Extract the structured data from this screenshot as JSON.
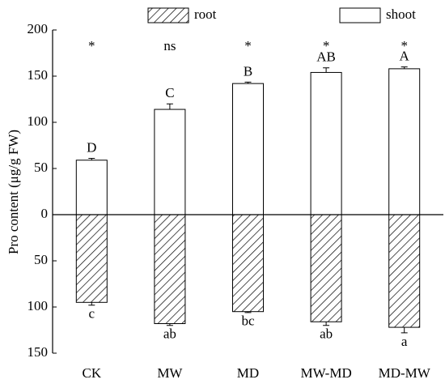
{
  "chart_data": {
    "type": "bar",
    "y_label": "Pro content (μg/g FW)",
    "categories": [
      "CK",
      "MW",
      "MD",
      "MW-MD",
      "MD-MW"
    ],
    "series": [
      {
        "name": "root",
        "color": "#000000",
        "hatch": true,
        "values": [
          -95,
          -118,
          -105,
          -116,
          -122
        ],
        "errors": [
          3,
          2,
          1,
          4,
          6
        ],
        "letters": [
          "c",
          "ab",
          "bc",
          "ab",
          "a"
        ]
      },
      {
        "name": "shoot",
        "color": "#000000",
        "hatch": false,
        "values": [
          59,
          114,
          142,
          154,
          158
        ],
        "errors": [
          2,
          6,
          1.5,
          5,
          2
        ],
        "letters": [
          "D",
          "C",
          "B",
          "AB",
          "A"
        ]
      }
    ],
    "significance": [
      "*",
      "ns",
      "*",
      "*",
      "*"
    ],
    "ylim": [
      -150,
      200
    ],
    "yticks": [
      {
        "value": -150,
        "label": "150"
      },
      {
        "value": -100,
        "label": "100"
      },
      {
        "value": -50,
        "label": "50"
      },
      0,
      50,
      100,
      150,
      200
    ],
    "legend": "top"
  }
}
